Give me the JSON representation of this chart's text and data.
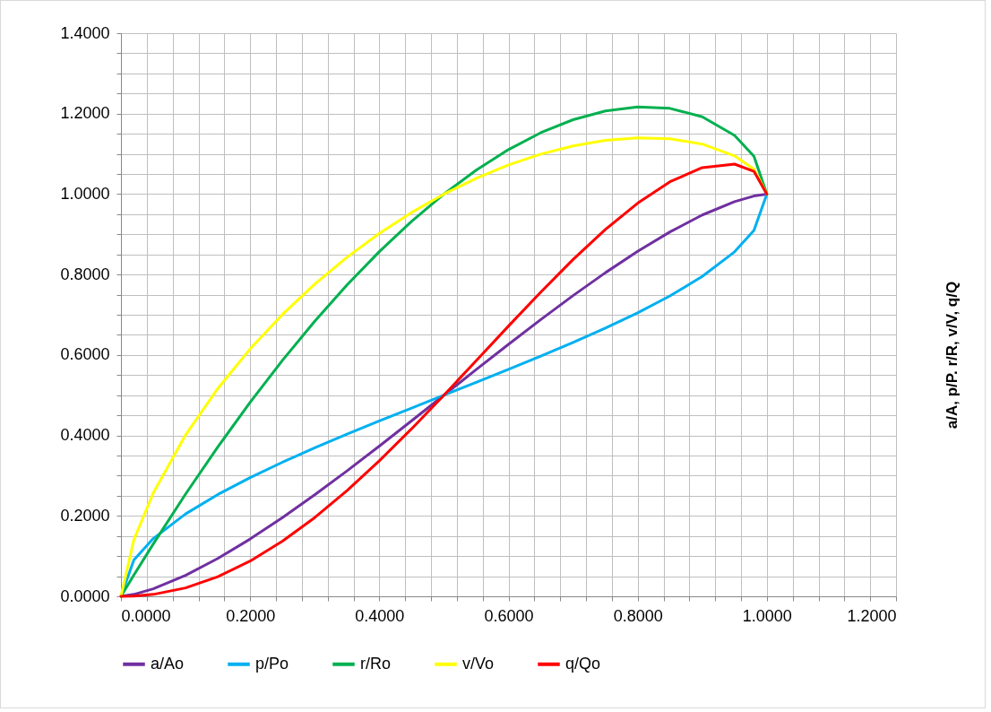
{
  "chart_data": {
    "type": "line",
    "y2label": "a/A, p/P. r/R, v/V, q/Q",
    "x": [
      0,
      0.02,
      0.05,
      0.1,
      0.15,
      0.2,
      0.25,
      0.3,
      0.35,
      0.4,
      0.45,
      0.5,
      0.55,
      0.6,
      0.65,
      0.7,
      0.75,
      0.8,
      0.85,
      0.9,
      0.95,
      0.98,
      1
    ],
    "series": [
      {
        "name": "a/Ao",
        "color": "#7030a0",
        "values": [
          0,
          0.0048,
          0.0187,
          0.052,
          0.0941,
          0.1424,
          0.1955,
          0.2523,
          0.3119,
          0.3735,
          0.4364,
          0.5,
          0.5636,
          0.6265,
          0.6881,
          0.7477,
          0.8045,
          0.8576,
          0.9059,
          0.948,
          0.9813,
          0.9952,
          1
        ]
      },
      {
        "name": "p/Po",
        "color": "#00b0f0",
        "values": [
          0,
          0.0903,
          0.1436,
          0.2048,
          0.2532,
          0.2952,
          0.3333,
          0.369,
          0.403,
          0.4359,
          0.4681,
          0.5,
          0.5319,
          0.5641,
          0.597,
          0.631,
          0.6667,
          0.7048,
          0.7468,
          0.7952,
          0.8564,
          0.9097,
          1
        ]
      },
      {
        "name": "r/Ro",
        "color": "#00b050",
        "values": [
          0,
          0.0528,
          0.1302,
          0.2541,
          0.3715,
          0.4824,
          0.5865,
          0.6838,
          0.774,
          0.8569,
          0.9323,
          1,
          1.0595,
          1.1106,
          1.1526,
          1.1849,
          1.2067,
          1.2168,
          1.2131,
          1.1921,
          1.1458,
          1.094,
          1
        ]
      },
      {
        "name": "v/Vo",
        "color": "#ffff00",
        "values": [
          0,
          0.1407,
          0.2569,
          0.4012,
          0.5168,
          0.6151,
          0.7007,
          0.7762,
          0.843,
          0.9022,
          0.9543,
          1,
          1.0393,
          1.0724,
          1.0993,
          1.1198,
          1.1335,
          1.1397,
          1.1375,
          1.1243,
          1.095,
          1.0617,
          1
        ]
      },
      {
        "name": "q/Qo",
        "color": "#ff0000",
        "values": [
          0,
          0.0007,
          0.0048,
          0.0209,
          0.0486,
          0.0876,
          0.137,
          0.1958,
          0.2629,
          0.337,
          0.4165,
          0.5,
          0.5857,
          0.6719,
          0.7564,
          0.8373,
          0.9119,
          0.9774,
          1.0305,
          1.0658,
          1.0745,
          1.0566,
          1
        ]
      }
    ],
    "xlim": [
      0,
      1.2
    ],
    "ylim": [
      0,
      1.4
    ],
    "xticks": [
      {
        "value": 0,
        "label": "0.0000"
      },
      {
        "value": 0.04,
        "label": null
      },
      {
        "value": 0.08,
        "label": null
      },
      {
        "value": 0.12,
        "label": null
      },
      {
        "value": 0.16,
        "label": null
      },
      {
        "value": 0.2,
        "label": "0.2000"
      },
      {
        "value": 0.24,
        "label": null
      },
      {
        "value": 0.28,
        "label": null
      },
      {
        "value": 0.32,
        "label": null
      },
      {
        "value": 0.36,
        "label": null
      },
      {
        "value": 0.4,
        "label": "0.4000"
      },
      {
        "value": 0.44,
        "label": null
      },
      {
        "value": 0.48,
        "label": null
      },
      {
        "value": 0.52,
        "label": null
      },
      {
        "value": 0.56,
        "label": null
      },
      {
        "value": 0.6,
        "label": "0.6000"
      },
      {
        "value": 0.64,
        "label": null
      },
      {
        "value": 0.68,
        "label": null
      },
      {
        "value": 0.72,
        "label": null
      },
      {
        "value": 0.76,
        "label": null
      },
      {
        "value": 0.8,
        "label": "0.8000"
      },
      {
        "value": 0.84,
        "label": null
      },
      {
        "value": 0.88,
        "label": null
      },
      {
        "value": 0.92,
        "label": null
      },
      {
        "value": 0.96,
        "label": null
      },
      {
        "value": 1,
        "label": "1.0000"
      },
      {
        "value": 1.04,
        "label": null
      },
      {
        "value": 1.08,
        "label": null
      },
      {
        "value": 1.12,
        "label": null
      },
      {
        "value": 1.16,
        "label": null
      },
      {
        "value": 1.2,
        "label": "1.2000"
      }
    ],
    "yticks": [
      {
        "value": 0,
        "label": "0.0000"
      },
      {
        "value": 0.05,
        "label": null
      },
      {
        "value": 0.1,
        "label": null
      },
      {
        "value": 0.15,
        "label": null
      },
      {
        "value": 0.2,
        "label": "0.2000"
      },
      {
        "value": 0.25,
        "label": null
      },
      {
        "value": 0.3,
        "label": null
      },
      {
        "value": 0.35,
        "label": null
      },
      {
        "value": 0.4,
        "label": "0.4000"
      },
      {
        "value": 0.45,
        "label": null
      },
      {
        "value": 0.5,
        "label": null
      },
      {
        "value": 0.55,
        "label": null
      },
      {
        "value": 0.6,
        "label": "0.6000"
      },
      {
        "value": 0.65,
        "label": null
      },
      {
        "value": 0.7,
        "label": null
      },
      {
        "value": 0.75,
        "label": null
      },
      {
        "value": 0.8,
        "label": "0.8000"
      },
      {
        "value": 0.85,
        "label": null
      },
      {
        "value": 0.9,
        "label": null
      },
      {
        "value": 0.95,
        "label": null
      },
      {
        "value": 1,
        "label": "1.0000"
      },
      {
        "value": 1.05,
        "label": null
      },
      {
        "value": 1.1,
        "label": null
      },
      {
        "value": 1.15,
        "label": null
      },
      {
        "value": 1.2,
        "label": "1.2000"
      },
      {
        "value": 1.25,
        "label": null
      },
      {
        "value": 1.3,
        "label": null
      },
      {
        "value": 1.35,
        "label": null
      },
      {
        "value": 1.4,
        "label": "1.4000"
      }
    ],
    "grid": true,
    "legend": "bottom",
    "marker": "none",
    "line_style": "solid"
  }
}
